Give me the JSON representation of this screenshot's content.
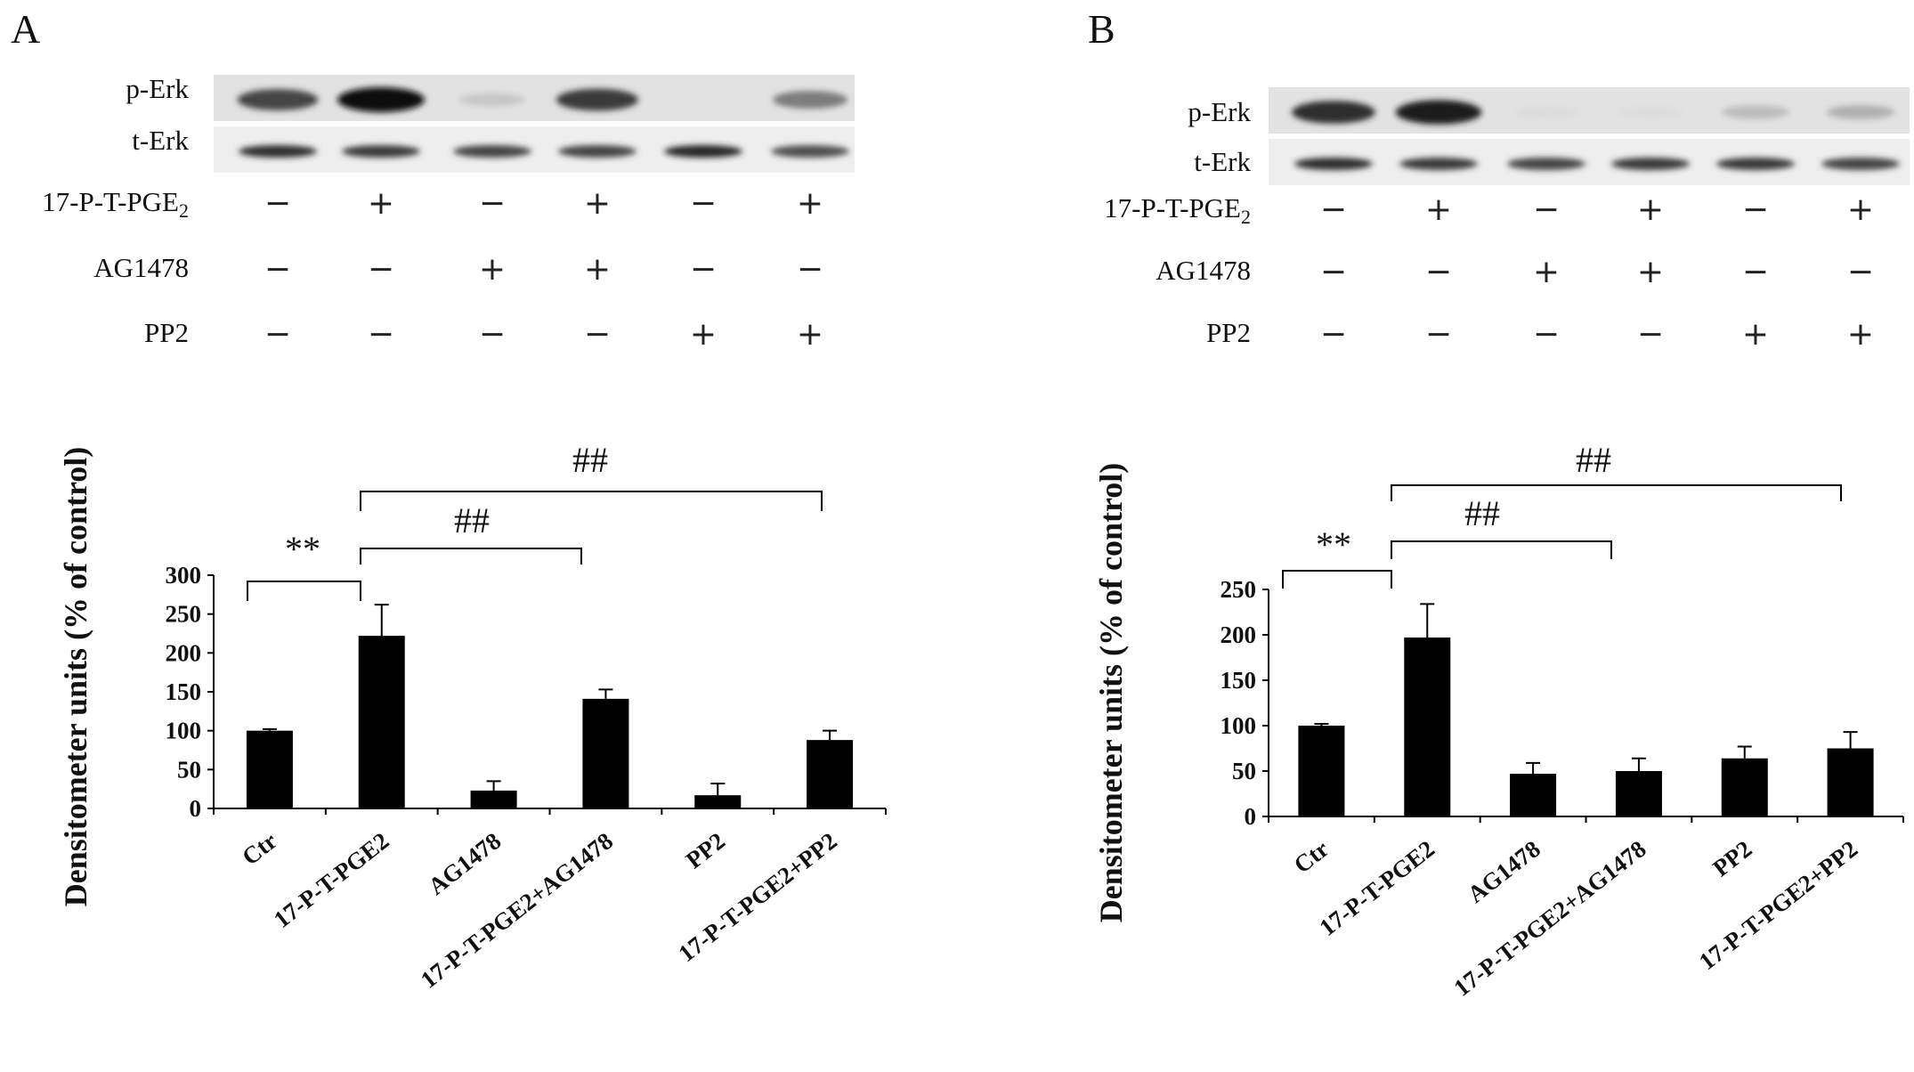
{
  "panels": [
    {
      "label": "A",
      "blot": {
        "rows": [
          "p-Erk",
          "t-Erk"
        ],
        "pErk_intensity": [
          0.75,
          1.0,
          0.15,
          0.8,
          0.0,
          0.5
        ],
        "tErk_intensity": [
          0.85,
          0.8,
          0.75,
          0.75,
          0.9,
          0.7
        ]
      },
      "treatments": [
        {
          "name": "17-P-T-PGE",
          "sub": "2",
          "signs": [
            "−",
            "+",
            "−",
            "+",
            "−",
            "+"
          ]
        },
        {
          "name": "AG1478",
          "sub": "",
          "signs": [
            "−",
            "−",
            "+",
            "+",
            "−",
            "−"
          ]
        },
        {
          "name": "PP2",
          "sub": "",
          "signs": [
            "−",
            "−",
            "−",
            "−",
            "+",
            "+"
          ]
        }
      ],
      "chart_data": {
        "type": "bar",
        "categories": [
          "Ctr",
          "17-P-T-PGE2",
          "AG1478",
          "17-P-T-PGE2+AG1478",
          "PP2",
          "17-P-T-PGE2+PP2"
        ],
        "values": [
          100,
          222,
          23,
          141,
          17,
          88
        ],
        "errors": [
          2,
          40,
          12,
          12,
          15,
          12
        ],
        "ylabel": "Densitometer units (% of control)",
        "yticks": [
          0,
          50,
          100,
          150,
          200,
          250,
          300
        ],
        "ylim": [
          0,
          300
        ],
        "significance": [
          {
            "from": 0,
            "to": 1,
            "label": "**"
          },
          {
            "from": 1,
            "to": 3,
            "label": "##"
          },
          {
            "from": 1,
            "to": 5,
            "label": "##"
          }
        ]
      }
    },
    {
      "label": "B",
      "blot": {
        "rows": [
          "p-Erk",
          "t-Erk"
        ],
        "pErk_intensity": [
          0.85,
          0.95,
          0.05,
          0.04,
          0.2,
          0.25
        ],
        "tErk_intensity": [
          0.85,
          0.8,
          0.75,
          0.8,
          0.8,
          0.75
        ]
      },
      "treatments": [
        {
          "name": "17-P-T-PGE",
          "sub": "2",
          "signs": [
            "−",
            "+",
            "−",
            "+",
            "−",
            "+"
          ]
        },
        {
          "name": "AG1478",
          "sub": "",
          "signs": [
            "−",
            "−",
            "+",
            "+",
            "−",
            "−"
          ]
        },
        {
          "name": "PP2",
          "sub": "",
          "signs": [
            "−",
            "−",
            "−",
            "−",
            "+",
            "+"
          ]
        }
      ],
      "chart_data": {
        "type": "bar",
        "categories": [
          "Ctr",
          "17-P-T-PGE2",
          "AG1478",
          "17-P-T-PGE2+AG1478",
          "PP2",
          "17-P-T-PGE2+PP2"
        ],
        "values": [
          100,
          197,
          47,
          50,
          64,
          75
        ],
        "errors": [
          2,
          37,
          12,
          14,
          13,
          18
        ],
        "ylabel": "Densitometer units (% of control)",
        "yticks": [
          0,
          50,
          100,
          150,
          200,
          250
        ],
        "ylim": [
          0,
          250
        ],
        "significance": [
          {
            "from": 0,
            "to": 1,
            "label": "**"
          },
          {
            "from": 1,
            "to": 3,
            "label": "##"
          },
          {
            "from": 1,
            "to": 5,
            "label": "##"
          }
        ]
      }
    }
  ]
}
